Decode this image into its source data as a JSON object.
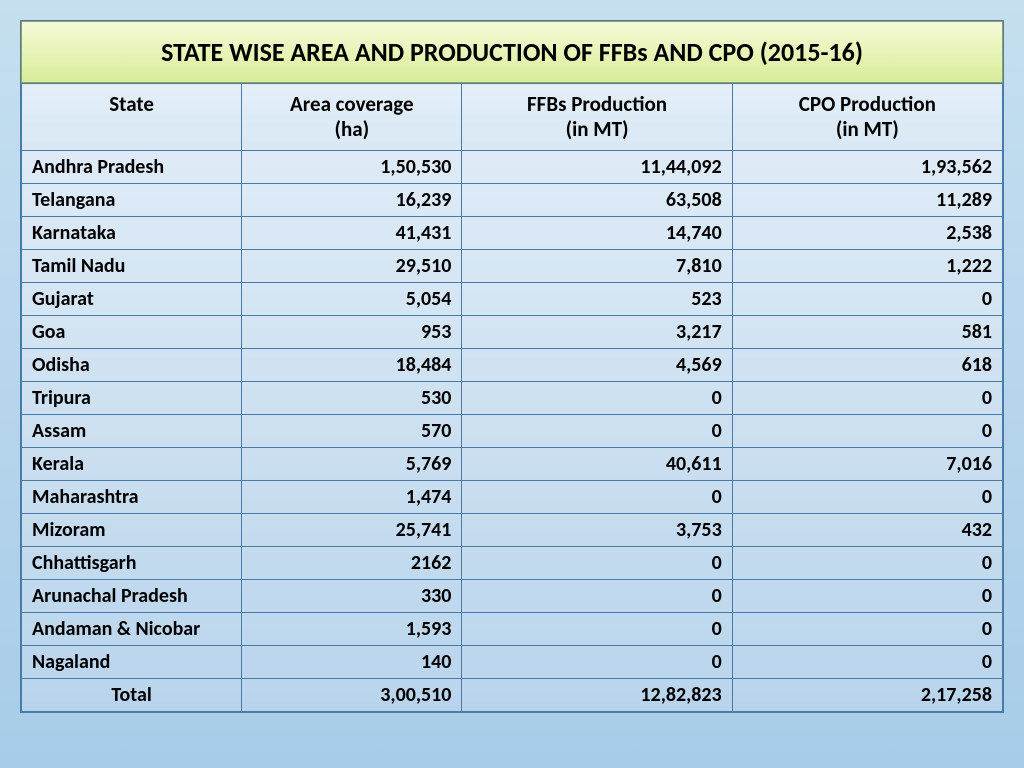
{
  "title": "STATE WISE AREA AND PRODUCTION OF FFBs AND CPO (2015-16)",
  "table": {
    "type": "table",
    "columns": [
      {
        "label": "State",
        "align": "left"
      },
      {
        "label": "Area coverage\n(ha)",
        "align": "right"
      },
      {
        "label": "FFBs Production\n(in MT)",
        "align": "right"
      },
      {
        "label": "CPO Production\n(in MT)",
        "align": "right"
      }
    ],
    "rows": [
      {
        "state": "Andhra Pradesh",
        "area": "1,50,530",
        "ffbs": "11,44,092",
        "cpo": "1,93,562"
      },
      {
        "state": "Telangana",
        "area": "16,239",
        "ffbs": "63,508",
        "cpo": "11,289"
      },
      {
        "state": "Karnataka",
        "area": "41,431",
        "ffbs": "14,740",
        "cpo": "2,538"
      },
      {
        "state": "Tamil Nadu",
        "area": "29,510",
        "ffbs": "7,810",
        "cpo": "1,222"
      },
      {
        "state": "Gujarat",
        "area": "5,054",
        "ffbs": "523",
        "cpo": "0"
      },
      {
        "state": "Goa",
        "area": "953",
        "ffbs": "3,217",
        "cpo": "581"
      },
      {
        "state": "Odisha",
        "area": "18,484",
        "ffbs": "4,569",
        "cpo": "618"
      },
      {
        "state": "Tripura",
        "area": "530",
        "ffbs": "0",
        "cpo": "0"
      },
      {
        "state": "Assam",
        "area": "570",
        "ffbs": "0",
        "cpo": "0"
      },
      {
        "state": "Kerala",
        "area": "5,769",
        "ffbs": "40,611",
        "cpo": "7,016"
      },
      {
        "state": "Maharashtra",
        "area": "1,474",
        "ffbs": "0",
        "cpo": "0"
      },
      {
        "state": "Mizoram",
        "area": "25,741",
        "ffbs": "3,753",
        "cpo": "432"
      },
      {
        "state": "Chhattisgarh",
        "area": "2162",
        "ffbs": "0",
        "cpo": "0"
      },
      {
        "state": "Arunachal Pradesh",
        "area": "330",
        "ffbs": "0",
        "cpo": "0"
      },
      {
        "state": "Andaman & Nicobar",
        "area": "1,593",
        "ffbs": "0",
        "cpo": "0"
      },
      {
        "state": "Nagaland",
        "area": "140",
        "ffbs": "0",
        "cpo": "0"
      }
    ],
    "total": {
      "state": "Total",
      "area": "3,00,510",
      "ffbs": "12,82,823",
      "cpo": "2,17,258"
    }
  },
  "style": {
    "title_bg_gradient": [
      "#f4f9d8",
      "#e8f4b8",
      "#d8eb9a"
    ],
    "title_border": "#8fa850",
    "body_bg_gradient": [
      "#c5dff0",
      "#a8cce8"
    ],
    "cell_border": "#4a7ba6",
    "header_bg_gradient": [
      "#e3eef8",
      "#d8e8f4"
    ],
    "table_bg_gradient": [
      "#e3eef8",
      "#cee1f1",
      "#b8d4ec"
    ],
    "title_fontsize": 26,
    "header_fontsize": 21,
    "cell_fontsize": 20,
    "font_weight": "bold",
    "text_color": "#000000"
  }
}
